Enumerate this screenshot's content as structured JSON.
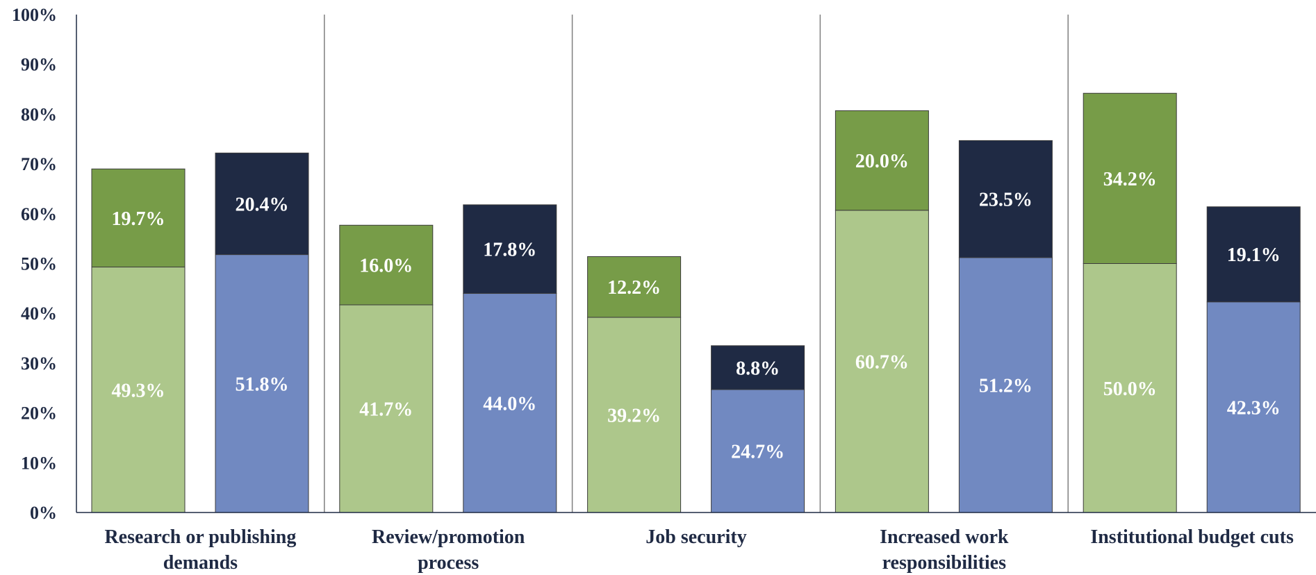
{
  "chart_data": {
    "type": "bar",
    "stacked": true,
    "categories": [
      [
        "Research or publishing",
        "demands"
      ],
      [
        "Review/promotion",
        "process"
      ],
      [
        "Job security"
      ],
      [
        "Increased work",
        "responsibilities"
      ],
      [
        "Institutional budget cuts"
      ]
    ],
    "bars_per_category": 2,
    "bars": [
      {
        "category": 0,
        "position": 0,
        "bottom": 49.3,
        "top": 19.7,
        "bottom_label": "49.3%",
        "top_label": "19.7%",
        "palette": "green"
      },
      {
        "category": 0,
        "position": 1,
        "bottom": 51.8,
        "top": 20.4,
        "bottom_label": "51.8%",
        "top_label": "20.4%",
        "palette": "blue"
      },
      {
        "category": 1,
        "position": 0,
        "bottom": 41.7,
        "top": 16.0,
        "bottom_label": "41.7%",
        "top_label": "16.0%",
        "palette": "green"
      },
      {
        "category": 1,
        "position": 1,
        "bottom": 44.0,
        "top": 17.8,
        "bottom_label": "44.0%",
        "top_label": "17.8%",
        "palette": "blue"
      },
      {
        "category": 2,
        "position": 0,
        "bottom": 39.2,
        "top": 12.2,
        "bottom_label": "39.2%",
        "top_label": "12.2%",
        "palette": "green"
      },
      {
        "category": 2,
        "position": 1,
        "bottom": 24.7,
        "top": 8.8,
        "bottom_label": "24.7%",
        "top_label": "8.8%",
        "palette": "blue"
      },
      {
        "category": 3,
        "position": 0,
        "bottom": 60.7,
        "top": 20.0,
        "bottom_label": "60.7%",
        "top_label": "20.0%",
        "palette": "green"
      },
      {
        "category": 3,
        "position": 1,
        "bottom": 51.2,
        "top": 23.5,
        "bottom_label": "51.2%",
        "top_label": "23.5%",
        "palette": "blue"
      },
      {
        "category": 4,
        "position": 0,
        "bottom": 50.0,
        "top": 34.2,
        "bottom_label": "50.0%",
        "top_label": "34.2%",
        "palette": "green"
      },
      {
        "category": 4,
        "position": 1,
        "bottom": 42.3,
        "top": 19.1,
        "bottom_label": "42.3%",
        "top_label": "19.1%",
        "palette": "blue"
      }
    ],
    "y_ticks": [
      "0%",
      "10%",
      "20%",
      "30%",
      "40%",
      "50%",
      "60%",
      "70%",
      "80%",
      "90%",
      "100%"
    ],
    "ylim": [
      0,
      100
    ],
    "grid": false,
    "category_separators": true,
    "legend": "none",
    "colors": {
      "green_bottom": "#adc78b",
      "green_top": "#779c48",
      "blue_bottom": "#7189c1",
      "blue_top": "#1f2a44",
      "axis": "#1f2a44",
      "separator": "#7f7f7f"
    }
  }
}
